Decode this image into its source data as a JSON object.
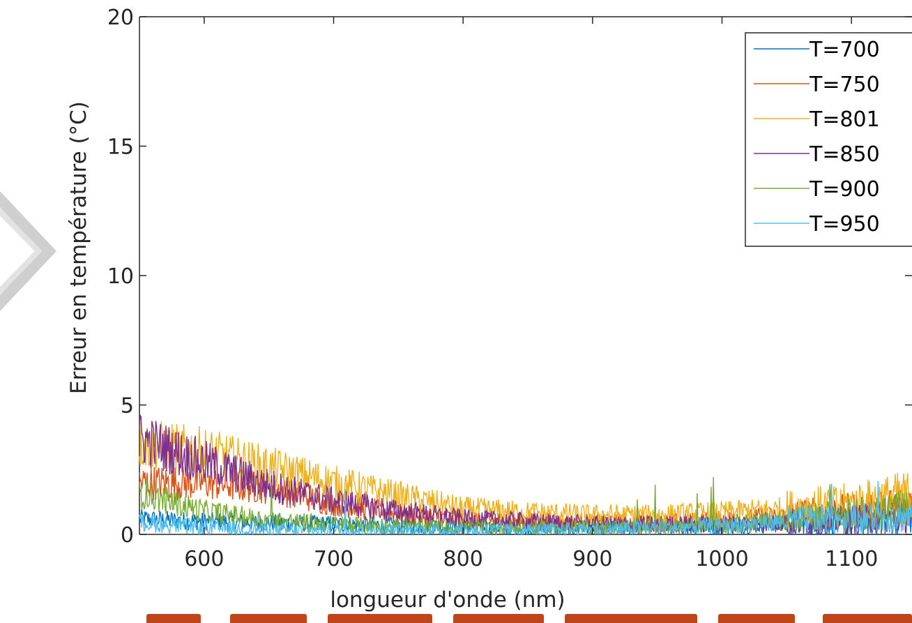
{
  "chart_data": {
    "type": "line",
    "title": "",
    "xlabel": "longueur d'onde (nm)",
    "ylabel": "Erreur en température (°C)",
    "xlim": [
      550,
      1150
    ],
    "ylim": [
      0,
      20
    ],
    "xticks": [
      600,
      700,
      800,
      900,
      1000,
      1100
    ],
    "yticks": [
      0,
      5,
      10,
      15,
      20
    ],
    "grid": false,
    "legend_position": "top-right",
    "series": [
      {
        "name": "T=700",
        "color": "#0072BD",
        "x": [
          550,
          600,
          650,
          700,
          750,
          800,
          850,
          900,
          950,
          1000,
          1050,
          1100,
          1150
        ],
        "y": [
          0.6,
          0.5,
          0.45,
          0.4,
          0.35,
          0.3,
          0.25,
          0.25,
          0.25,
          0.3,
          0.4,
          0.5,
          0.6
        ]
      },
      {
        "name": "T=750",
        "color": "#D95319",
        "x": [
          550,
          600,
          650,
          700,
          750,
          800,
          850,
          900,
          950,
          1000,
          1050,
          1100,
          1150
        ],
        "y": [
          2.0,
          2.0,
          1.8,
          1.2,
          0.8,
          0.6,
          0.5,
          0.45,
          0.45,
          0.55,
          0.7,
          0.9,
          1.2
        ]
      },
      {
        "name": "T=801",
        "color": "#EDB120",
        "x": [
          550,
          600,
          650,
          700,
          750,
          800,
          850,
          900,
          950,
          1000,
          1050,
          1100,
          1150
        ],
        "y": [
          3.5,
          3.2,
          2.6,
          2.0,
          1.5,
          1.0,
          0.85,
          0.75,
          0.75,
          0.85,
          1.0,
          1.2,
          1.6
        ]
      },
      {
        "name": "T=850",
        "color": "#7E2F8E",
        "x": [
          550,
          600,
          650,
          700,
          750,
          800,
          850,
          900,
          950,
          1000,
          1050,
          1100,
          1150
        ],
        "y": [
          3.7,
          2.8,
          1.9,
          1.3,
          0.9,
          0.6,
          0.5,
          0.4,
          0.4,
          0.4,
          0.45,
          0.55,
          0.7
        ]
      },
      {
        "name": "T=900",
        "color": "#77AC30",
        "x": [
          550,
          600,
          650,
          700,
          750,
          800,
          850,
          900,
          950,
          1000,
          1050,
          1100,
          1150
        ],
        "y": [
          1.6,
          0.9,
          0.55,
          0.4,
          0.3,
          0.25,
          0.25,
          0.25,
          0.3,
          0.4,
          0.55,
          0.75,
          1.0
        ]
      },
      {
        "name": "T=950",
        "color": "#4DBEEE",
        "x": [
          550,
          600,
          650,
          700,
          750,
          800,
          850,
          900,
          950,
          1000,
          1050,
          1100,
          1150
        ],
        "y": [
          0.45,
          0.25,
          0.15,
          0.15,
          0.15,
          0.15,
          0.15,
          0.2,
          0.25,
          0.35,
          0.5,
          0.6,
          0.7
        ]
      }
    ]
  }
}
